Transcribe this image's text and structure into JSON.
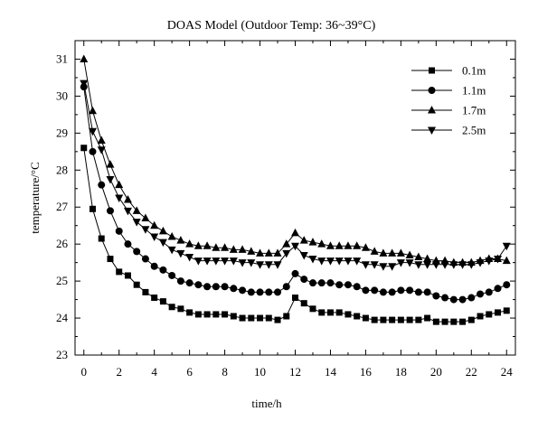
{
  "chart_data": {
    "type": "line",
    "title": "DOAS Model (Outdoor Temp: 36~39°C)",
    "xlabel": "time/h",
    "ylabel": "temperature/°C",
    "xlim": [
      -0.5,
      24.5
    ],
    "ylim": [
      23,
      31.5
    ],
    "xticks": [
      0,
      2,
      4,
      6,
      8,
      10,
      12,
      14,
      16,
      18,
      20,
      22,
      24
    ],
    "yticks": [
      23,
      24,
      25,
      26,
      27,
      28,
      29,
      30,
      31
    ],
    "grid": false,
    "legend_position": "top-right",
    "series": [
      {
        "name": "0.1m",
        "marker": "square",
        "x": [
          0,
          0.5,
          1,
          1.5,
          2,
          2.5,
          3,
          3.5,
          4,
          4.5,
          5,
          5.5,
          6,
          6.5,
          7,
          7.5,
          8,
          8.5,
          9,
          9.5,
          10,
          10.5,
          11,
          11.5,
          12,
          12.5,
          13,
          13.5,
          14,
          14.5,
          15,
          15.5,
          16,
          16.5,
          17,
          17.5,
          18,
          18.5,
          19,
          19.5,
          20,
          20.5,
          21,
          21.5,
          22,
          22.5,
          23,
          23.5,
          24
        ],
        "y": [
          28.6,
          26.95,
          26.15,
          25.6,
          25.25,
          25.15,
          24.9,
          24.7,
          24.55,
          24.45,
          24.3,
          24.25,
          24.15,
          24.1,
          24.1,
          24.1,
          24.1,
          24.05,
          24.0,
          24.0,
          24.0,
          24.0,
          23.95,
          24.05,
          24.55,
          24.4,
          24.25,
          24.15,
          24.15,
          24.15,
          24.1,
          24.05,
          24.0,
          23.95,
          23.95,
          23.95,
          23.95,
          23.95,
          23.95,
          24.0,
          23.9,
          23.9,
          23.9,
          23.9,
          23.95,
          24.05,
          24.1,
          24.15,
          24.2
        ]
      },
      {
        "name": "1.1m",
        "marker": "circle",
        "x": [
          0,
          0.5,
          1,
          1.5,
          2,
          2.5,
          3,
          3.5,
          4,
          4.5,
          5,
          5.5,
          6,
          6.5,
          7,
          7.5,
          8,
          8.5,
          9,
          9.5,
          10,
          10.5,
          11,
          11.5,
          12,
          12.5,
          13,
          13.5,
          14,
          14.5,
          15,
          15.5,
          16,
          16.5,
          17,
          17.5,
          18,
          18.5,
          19,
          19.5,
          20,
          20.5,
          21,
          21.5,
          22,
          22.5,
          23,
          23.5,
          24
        ],
        "y": [
          30.25,
          28.5,
          27.6,
          26.9,
          26.35,
          26.0,
          25.8,
          25.6,
          25.4,
          25.3,
          25.15,
          25.0,
          24.95,
          24.9,
          24.85,
          24.85,
          24.85,
          24.8,
          24.75,
          24.7,
          24.7,
          24.7,
          24.7,
          24.85,
          25.2,
          25.05,
          24.95,
          24.95,
          24.95,
          24.9,
          24.9,
          24.85,
          24.75,
          24.75,
          24.7,
          24.7,
          24.75,
          24.75,
          24.7,
          24.7,
          24.6,
          24.55,
          24.5,
          24.5,
          24.55,
          24.65,
          24.7,
          24.8,
          24.9
        ]
      },
      {
        "name": "1.7m",
        "marker": "triangle-up",
        "x": [
          0,
          0.5,
          1,
          1.5,
          2,
          2.5,
          3,
          3.5,
          4,
          4.5,
          5,
          5.5,
          6,
          6.5,
          7,
          7.5,
          8,
          8.5,
          9,
          9.5,
          10,
          10.5,
          11,
          11.5,
          12,
          12.5,
          13,
          13.5,
          14,
          14.5,
          15,
          15.5,
          16,
          16.5,
          17,
          17.5,
          18,
          18.5,
          19,
          19.5,
          20,
          20.5,
          21,
          21.5,
          22,
          22.5,
          23,
          23.5,
          24
        ],
        "y": [
          31.0,
          29.6,
          28.8,
          28.15,
          27.6,
          27.2,
          26.9,
          26.7,
          26.5,
          26.35,
          26.2,
          26.1,
          26.0,
          25.95,
          25.95,
          25.9,
          25.9,
          25.85,
          25.85,
          25.8,
          25.75,
          25.75,
          25.75,
          26.0,
          26.3,
          26.1,
          26.05,
          26.0,
          25.95,
          25.95,
          25.95,
          25.95,
          25.9,
          25.8,
          25.75,
          25.75,
          25.75,
          25.7,
          25.65,
          25.6,
          25.55,
          25.55,
          25.5,
          25.5,
          25.5,
          25.55,
          25.6,
          25.6,
          25.55
        ]
      },
      {
        "name": "2.5m",
        "marker": "triangle-down",
        "x": [
          0,
          0.5,
          1,
          1.5,
          2,
          2.5,
          3,
          3.5,
          4,
          4.5,
          5,
          5.5,
          6,
          6.5,
          7,
          7.5,
          8,
          8.5,
          9,
          9.5,
          10,
          10.5,
          11,
          11.5,
          12,
          12.5,
          13,
          13.5,
          14,
          14.5,
          15,
          15.5,
          16,
          16.5,
          17,
          17.5,
          18,
          18.5,
          19,
          19.5,
          20,
          20.5,
          21,
          21.5,
          22,
          22.5,
          23,
          23.5,
          24
        ],
        "y": [
          30.35,
          29.05,
          28.55,
          27.75,
          27.25,
          26.9,
          26.6,
          26.4,
          26.2,
          26.05,
          25.85,
          25.75,
          25.65,
          25.55,
          25.55,
          25.55,
          25.55,
          25.55,
          25.5,
          25.5,
          25.45,
          25.45,
          25.45,
          25.75,
          25.95,
          25.7,
          25.6,
          25.55,
          25.55,
          25.55,
          25.55,
          25.55,
          25.45,
          25.45,
          25.4,
          25.4,
          25.5,
          25.5,
          25.45,
          25.45,
          25.45,
          25.45,
          25.45,
          25.45,
          25.45,
          25.5,
          25.55,
          25.6,
          25.95
        ]
      }
    ]
  }
}
